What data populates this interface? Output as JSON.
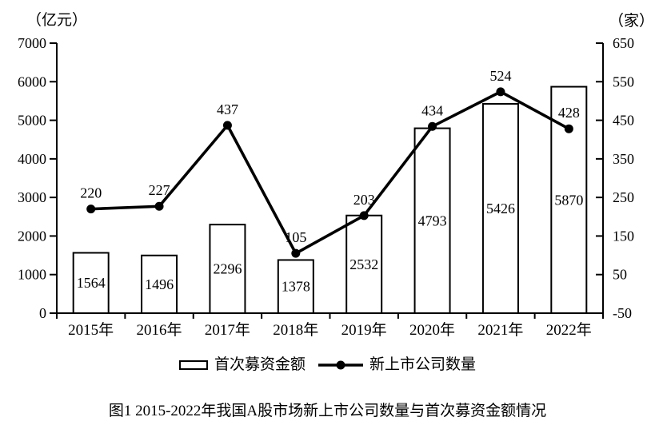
{
  "figure": {
    "caption": "图1  2015-2022年我国A股市场新上市公司数量与首次募资金额情况"
  },
  "legend": {
    "bar_label": "首次募资金额",
    "line_label": "新上市公司数量"
  },
  "colors": {
    "foreground": "#000000",
    "background": "#ffffff"
  },
  "chart_data": {
    "type": "combo",
    "categories": [
      "2015年",
      "2016年",
      "2017年",
      "2018年",
      "2019年",
      "2020年",
      "2021年",
      "2022年"
    ],
    "series": [
      {
        "name": "首次募资金额",
        "type": "bar",
        "axis": "left",
        "values": [
          1564,
          1496,
          2296,
          1378,
          2532,
          4793,
          5426,
          5870
        ],
        "fill": "#ffffff",
        "stroke": "#000000"
      },
      {
        "name": "新上市公司数量",
        "type": "line",
        "axis": "right",
        "values": [
          220,
          227,
          437,
          105,
          203,
          434,
          524,
          428
        ],
        "color": "#000000"
      }
    ],
    "left_axis": {
      "label": "（亿元）",
      "min": 0,
      "max": 7000,
      "step": 1000
    },
    "right_axis": {
      "label": "（家）",
      "min": -50,
      "max": 650,
      "step": 100
    },
    "grid": false,
    "legend_position": "bottom",
    "title": "图1  2015-2022年我国A股市场新上市公司数量与首次募资金额情况"
  }
}
